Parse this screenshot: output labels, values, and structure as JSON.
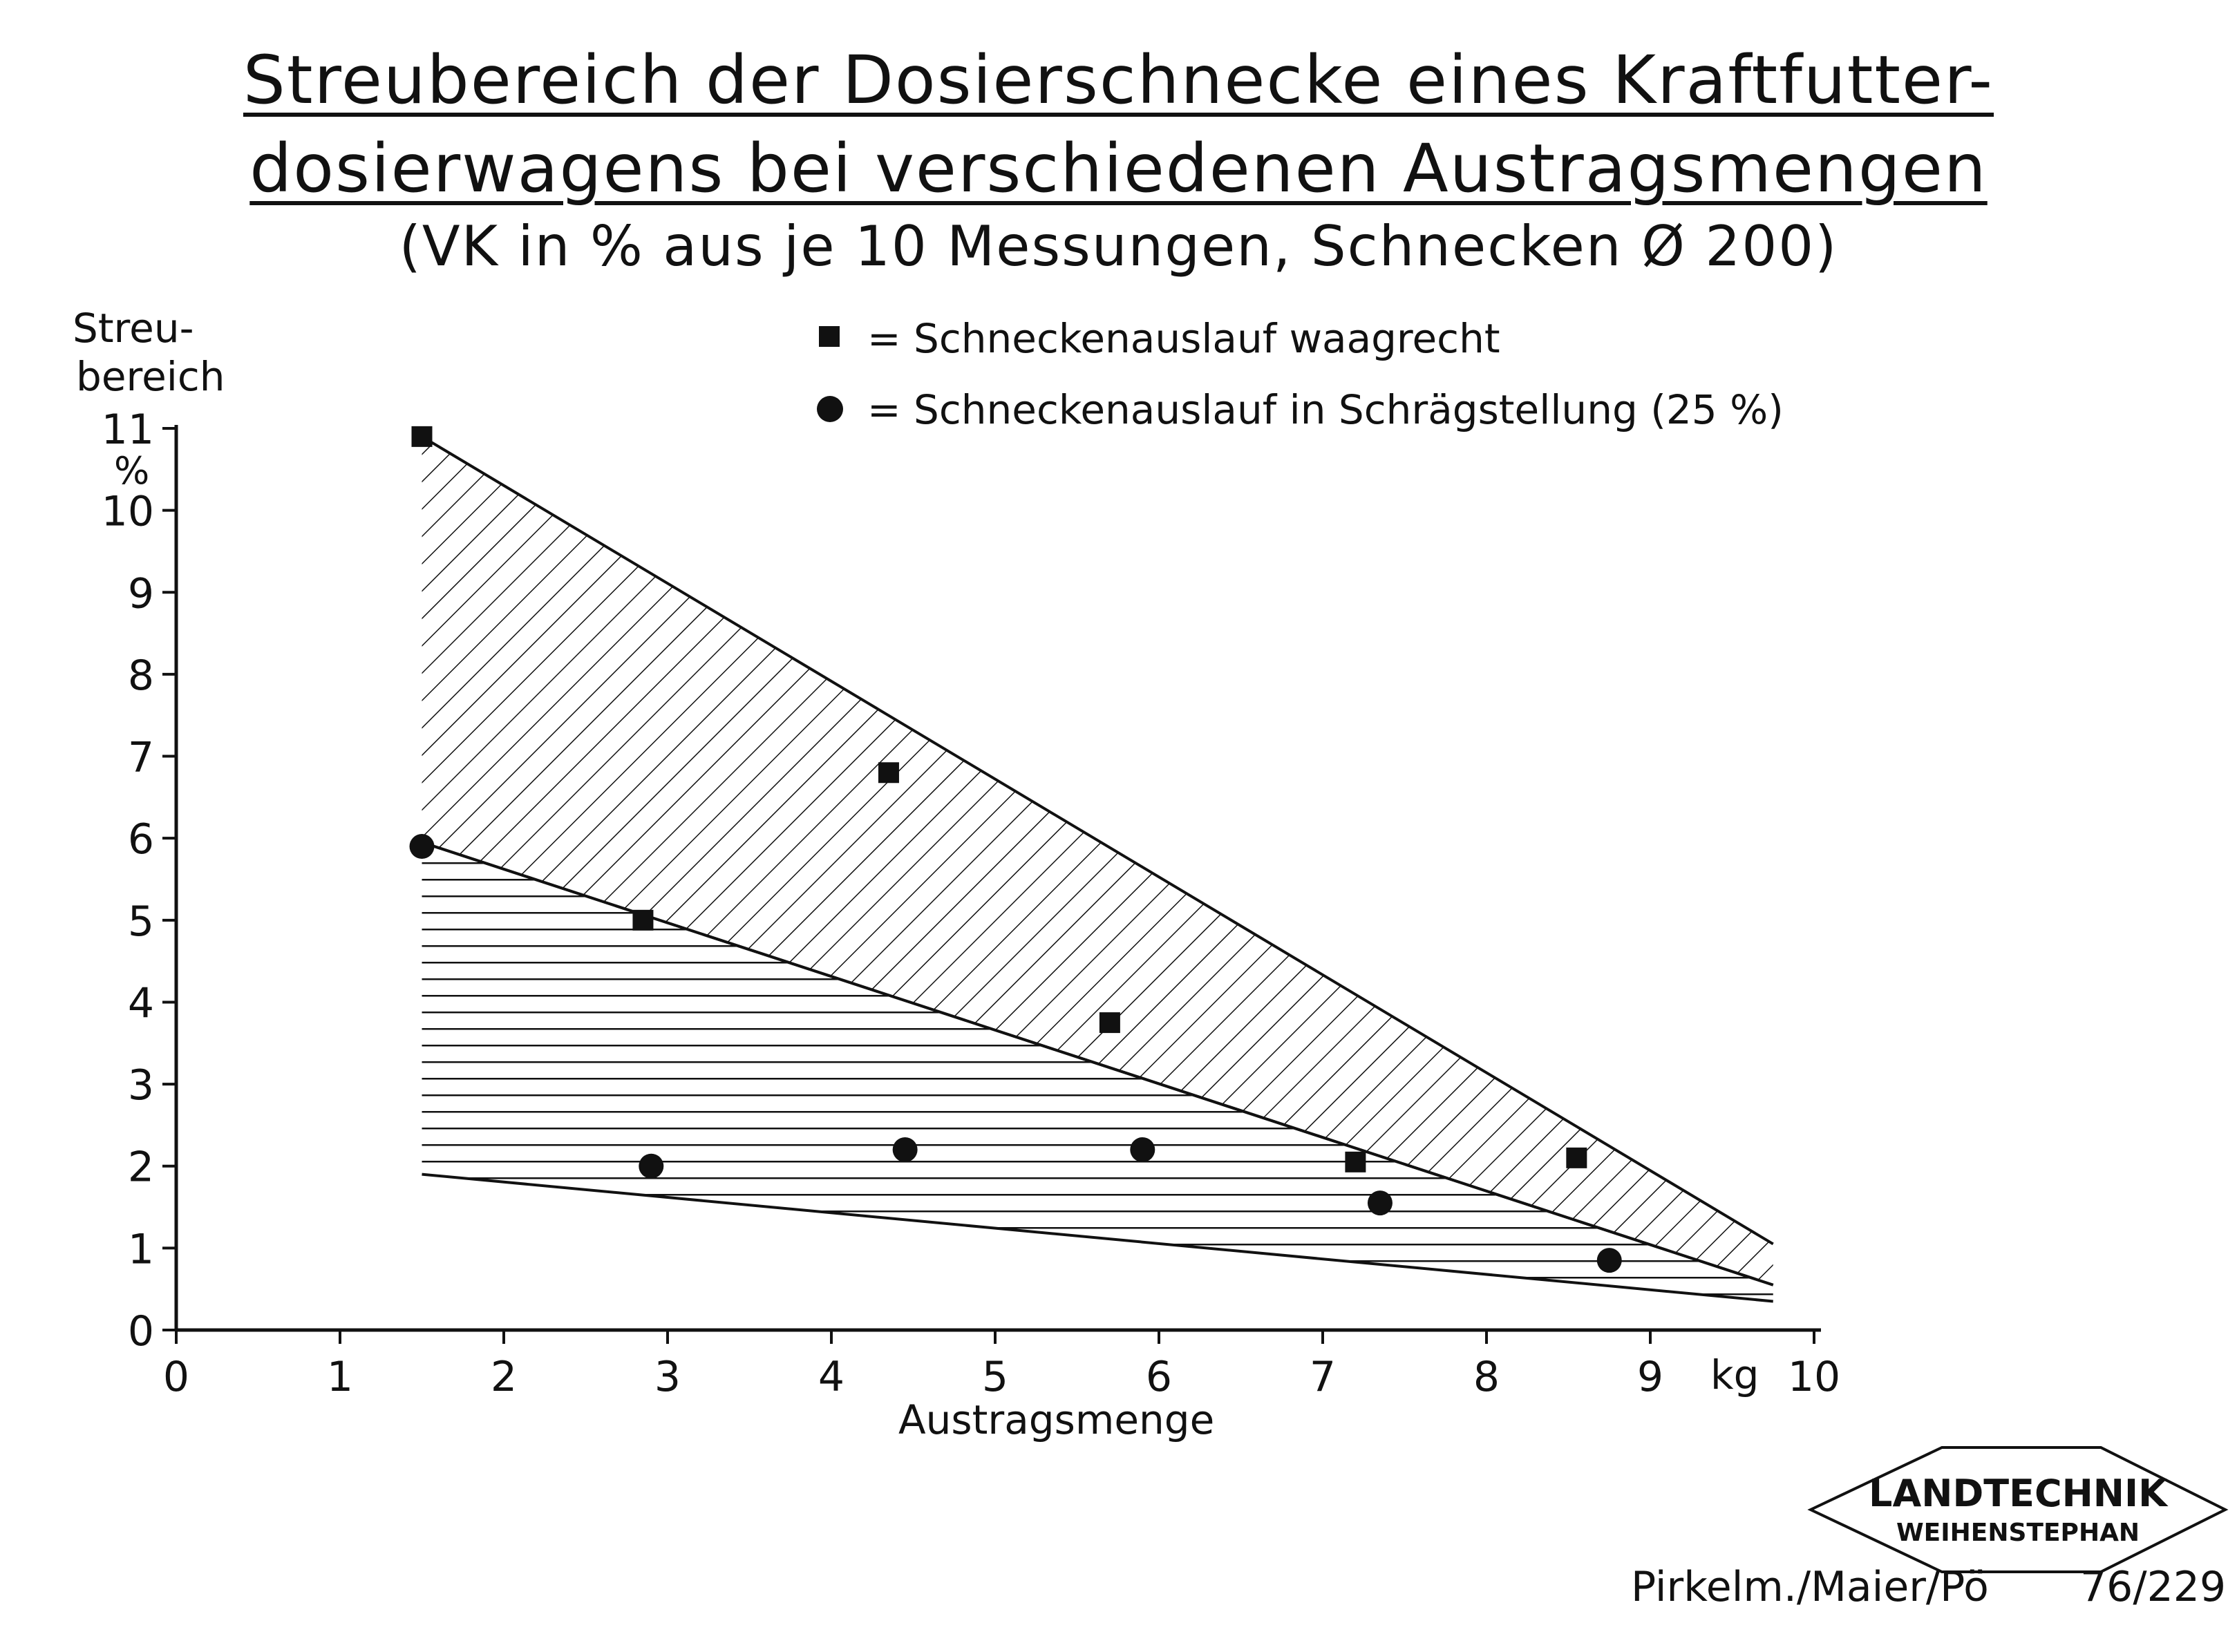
{
  "title": {
    "line1": "Streubereich der Dosierschnecke eines Kraftfutter-",
    "line2": "dosierwagens bei verschiedenen Austragsmengen",
    "subtitle": "(VK in % aus je 10 Messungen, Schnecken Ø 200)"
  },
  "legend": {
    "square_label": "= Schneckenauslauf waagrecht",
    "circle_label": "= Schneckenauslauf in Schrägstellung (25 %)"
  },
  "stamp": {
    "line1": "LANDTECHNIK",
    "line2": "WEIHENSTEPHAN"
  },
  "footer": {
    "authors": "Pirkelm./Maier/Pö",
    "number": "76/229"
  },
  "chart_data": {
    "type": "scatter",
    "ylabel_line1": "Streu-",
    "ylabel_line2": "bereich",
    "yunit": "%",
    "xlabel": "Austragsmenge",
    "xunit": "kg",
    "xlim": [
      0,
      10
    ],
    "ylim": [
      0,
      11
    ],
    "x_ticks": [
      0,
      1,
      2,
      3,
      4,
      5,
      6,
      7,
      8,
      9,
      10
    ],
    "y_ticks": [
      0,
      1,
      2,
      3,
      4,
      5,
      6,
      7,
      8,
      9,
      10,
      11
    ],
    "grid": false,
    "legend_position": "top-right",
    "series": [
      {
        "marker": "square",
        "points": [
          [
            1.5,
            10.9
          ],
          [
            2.85,
            5.0
          ],
          [
            4.35,
            6.8
          ],
          [
            5.7,
            3.75
          ],
          [
            7.2,
            2.05
          ],
          [
            8.55,
            2.1
          ]
        ]
      },
      {
        "marker": "circle",
        "points": [
          [
            1.5,
            5.9
          ],
          [
            2.9,
            2.0
          ],
          [
            4.45,
            2.2
          ],
          [
            5.9,
            2.2
          ],
          [
            7.35,
            1.55
          ],
          [
            8.75,
            0.85
          ]
        ]
      }
    ],
    "bands": [
      {
        "hatch": "diagonal",
        "upper_line": [
          [
            1.5,
            10.9
          ],
          [
            9.75,
            1.05
          ]
        ],
        "lower_line": [
          [
            1.5,
            5.95
          ],
          [
            9.75,
            0.55
          ]
        ]
      },
      {
        "hatch": "horizontal",
        "upper_line": [
          [
            1.5,
            5.95
          ],
          [
            9.75,
            0.55
          ]
        ],
        "lower_line": [
          [
            1.5,
            1.9
          ],
          [
            9.75,
            0.35
          ]
        ]
      }
    ]
  }
}
